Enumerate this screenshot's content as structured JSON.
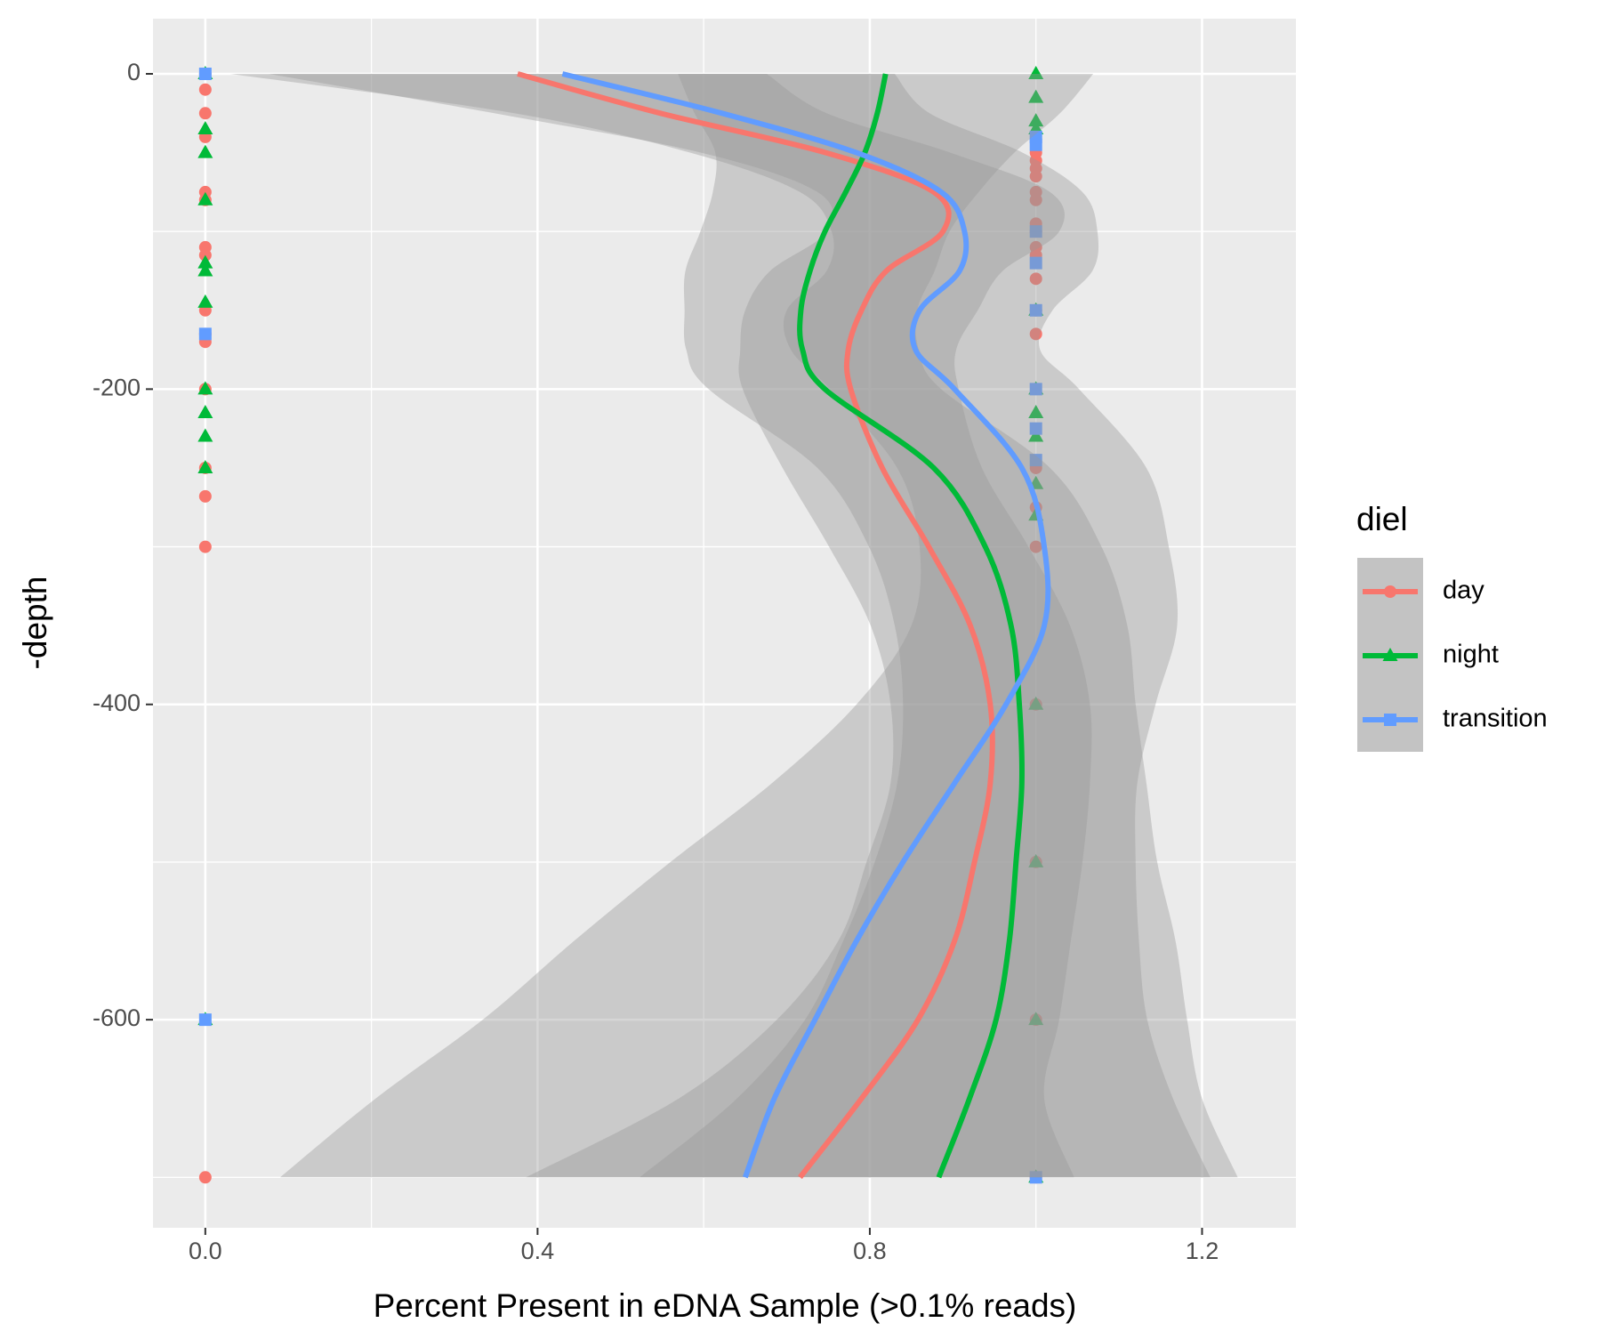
{
  "chart_data": {
    "type": "scatter-smooth",
    "x_label": "Percent Present in eDNA Sample (>0.1% reads)",
    "y_label": "-depth",
    "legend_title": "diel",
    "xlim": [
      -0.063,
      1.313
    ],
    "ylim": [
      -732,
      35
    ],
    "xticks": [
      {
        "value": 0,
        "label": "0.0"
      },
      0.4,
      0.8,
      1.2
    ],
    "yticks": [
      0,
      -200,
      -400,
      -600
    ],
    "x_minor_grid": [
      0.2,
      0.6,
      1.0
    ],
    "y_minor_grid": [
      -100,
      -300,
      -500,
      -700
    ],
    "grid": true,
    "band_color": "#999999",
    "series": [
      {
        "name": "day",
        "color": "#F8766D",
        "marker": "circle",
        "depth": [
          0,
          -25,
          -50,
          -75,
          -100,
          -125,
          -150,
          -175,
          -200,
          -250,
          -300,
          -350,
          -400,
          -450,
          -500,
          -550,
          -600,
          -650,
          -700
        ],
        "values": [
          0.376,
          0.548,
          0.747,
          0.877,
          0.888,
          0.82,
          0.79,
          0.774,
          0.777,
          0.815,
          0.871,
          0.921,
          0.945,
          0.945,
          0.926,
          0.902,
          0.858,
          0.79,
          0.716
        ],
        "lower": [
          0.076,
          0.348,
          0.597,
          0.737,
          0.748,
          0.68,
          0.65,
          0.644,
          0.647,
          0.695,
          0.751,
          0.801,
          0.825,
          0.825,
          0.796,
          0.762,
          0.688,
          0.57,
          0.386
        ],
        "upper": [
          0.676,
          0.748,
          0.897,
          1.017,
          1.028,
          0.96,
          0.93,
          0.904,
          0.907,
          0.935,
          0.991,
          1.041,
          1.065,
          1.065,
          1.056,
          1.042,
          1.028,
          1.01,
          1.046
        ],
        "points": {
          "x": [
            0,
            0,
            0,
            0,
            0,
            0,
            0,
            0,
            0,
            0,
            0,
            0,
            0,
            0,
            0,
            0,
            1,
            1,
            1,
            1,
            1,
            1,
            1,
            1,
            1,
            1,
            1,
            1,
            1,
            1,
            1,
            1,
            1,
            1,
            1,
            1
          ],
          "y": [
            0,
            -10,
            -25,
            -40,
            -75,
            -80,
            -110,
            -115,
            -150,
            -165,
            -170,
            -200,
            -250,
            -268,
            -300,
            -700,
            -50,
            -55,
            -60,
            -65,
            -75,
            -80,
            -95,
            -100,
            -110,
            -115,
            -130,
            -150,
            -165,
            -250,
            -275,
            -300,
            -400,
            -500,
            -600,
            -700
          ]
        }
      },
      {
        "name": "night",
        "color": "#00BA38",
        "marker": "triangle",
        "depth": [
          0,
          -25,
          -50,
          -75,
          -100,
          -125,
          -150,
          -175,
          -200,
          -250,
          -300,
          -350,
          -400,
          -450,
          -500,
          -550,
          -600,
          -650,
          -700
        ],
        "values": [
          0.819,
          0.809,
          0.794,
          0.771,
          0.746,
          0.728,
          0.717,
          0.719,
          0.746,
          0.877,
          0.939,
          0.97,
          0.98,
          0.983,
          0.976,
          0.968,
          0.952,
          0.92,
          0.883
        ],
        "lower": [
          0.569,
          0.589,
          0.614,
          0.611,
          0.596,
          0.578,
          0.577,
          0.579,
          0.606,
          0.737,
          0.799,
          0.83,
          0.84,
          0.833,
          0.806,
          0.768,
          0.722,
          0.64,
          0.523
        ],
        "upper": [
          1.069,
          1.029,
          0.974,
          0.931,
          0.896,
          0.878,
          0.857,
          0.859,
          0.886,
          1.017,
          1.079,
          1.11,
          1.12,
          1.133,
          1.146,
          1.168,
          1.182,
          1.2,
          1.243
        ],
        "points": {
          "x": [
            0,
            0,
            0,
            0,
            0,
            0,
            0,
            0,
            0,
            0,
            0,
            0,
            1,
            1,
            1,
            1,
            1,
            1,
            1,
            1,
            1,
            1,
            1,
            1,
            1,
            1
          ],
          "y": [
            0,
            -35,
            -50,
            -80,
            -120,
            -125,
            -145,
            -200,
            -215,
            -230,
            -250,
            -600,
            0,
            -15,
            -30,
            -35,
            -150,
            -200,
            -215,
            -230,
            -260,
            -280,
            -400,
            -500,
            -600,
            -700
          ]
        }
      },
      {
        "name": "transition",
        "color": "#619CFF",
        "marker": "square",
        "depth": [
          0,
          -25,
          -50,
          -75,
          -100,
          -125,
          -150,
          -175,
          -200,
          -250,
          -300,
          -350,
          -400,
          -450,
          -500,
          -550,
          -600,
          -650,
          -700
        ],
        "values": [
          0.43,
          0.622,
          0.784,
          0.886,
          0.914,
          0.908,
          0.86,
          0.855,
          0.902,
          0.983,
          1.01,
          1.01,
          0.964,
          0.902,
          0.84,
          0.784,
          0.734,
          0.685,
          0.65
        ],
        "lower": [
          0.03,
          0.372,
          0.584,
          0.716,
          0.754,
          0.748,
          0.7,
          0.705,
          0.752,
          0.833,
          0.86,
          0.85,
          0.784,
          0.682,
          0.56,
          0.444,
          0.334,
          0.205,
          0.09
        ],
        "upper": [
          0.83,
          0.872,
          0.984,
          1.056,
          1.074,
          1.068,
          1.02,
          1.005,
          1.052,
          1.133,
          1.16,
          1.17,
          1.144,
          1.122,
          1.12,
          1.124,
          1.134,
          1.165,
          1.21
        ],
        "points": {
          "x": [
            0,
            0,
            0,
            1,
            1,
            1,
            1,
            1,
            1,
            1,
            1,
            1
          ],
          "y": [
            0,
            -165,
            -600,
            -40,
            -45,
            -100,
            -120,
            -150,
            -200,
            -225,
            -245,
            -700
          ]
        }
      }
    ]
  }
}
